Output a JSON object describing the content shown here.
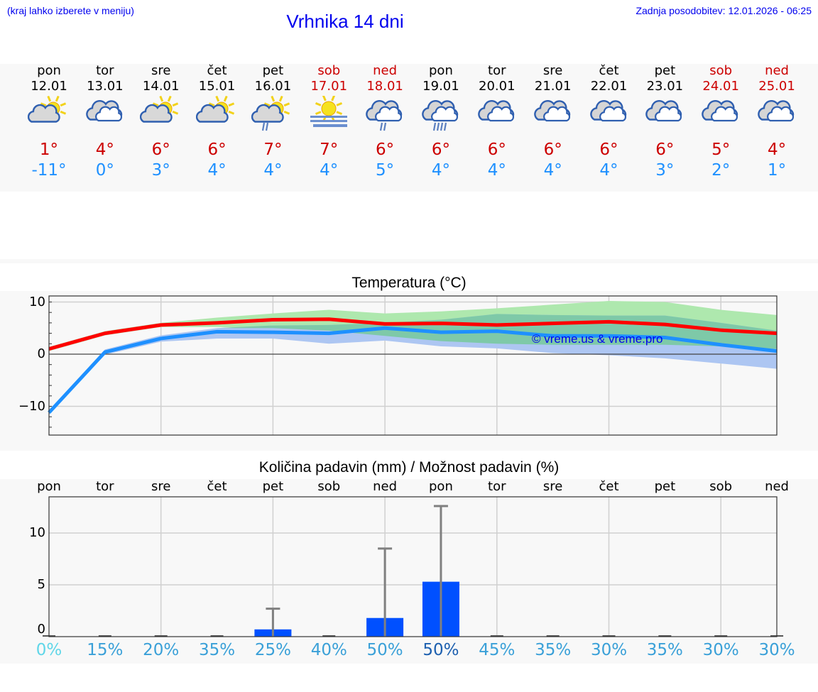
{
  "header": {
    "city_hint": "(kraj lahko izberete v meniju)",
    "title": "Vrhnika 14 dni",
    "updated": "Zadnja posodobitev: 12.01.2026 - 06:25"
  },
  "forecast": {
    "days": [
      {
        "dow": "pon",
        "date": "12.01",
        "weekend": false,
        "icon": "partly-cloudy-icon",
        "max": "1°",
        "min": "-11°"
      },
      {
        "dow": "tor",
        "date": "13.01",
        "weekend": false,
        "icon": "cloudy-icon",
        "max": "4°",
        "min": "0°"
      },
      {
        "dow": "sre",
        "date": "14.01",
        "weekend": false,
        "icon": "partly-cloudy-icon",
        "max": "6°",
        "min": "3°"
      },
      {
        "dow": "čet",
        "date": "15.01",
        "weekend": false,
        "icon": "partly-cloudy-icon",
        "max": "6°",
        "min": "4°"
      },
      {
        "dow": "pet",
        "date": "16.01",
        "weekend": false,
        "icon": "partly-cloudy-light-rain-icon",
        "max": "7°",
        "min": "4°"
      },
      {
        "dow": "sob",
        "date": "17.01",
        "weekend": true,
        "icon": "sun-fog-icon",
        "max": "7°",
        "min": "4°"
      },
      {
        "dow": "ned",
        "date": "18.01",
        "weekend": true,
        "icon": "cloudy-light-rain-icon",
        "max": "6°",
        "min": "5°"
      },
      {
        "dow": "pon",
        "date": "19.01",
        "weekend": false,
        "icon": "cloudy-rain-icon",
        "max": "6°",
        "min": "4°"
      },
      {
        "dow": "tor",
        "date": "20.01",
        "weekend": false,
        "icon": "cloudy-icon",
        "max": "6°",
        "min": "4°"
      },
      {
        "dow": "sre",
        "date": "21.01",
        "weekend": false,
        "icon": "cloudy-icon",
        "max": "6°",
        "min": "4°"
      },
      {
        "dow": "čet",
        "date": "22.01",
        "weekend": false,
        "icon": "cloudy-icon",
        "max": "6°",
        "min": "4°"
      },
      {
        "dow": "pet",
        "date": "23.01",
        "weekend": false,
        "icon": "cloudy-icon",
        "max": "6°",
        "min": "3°"
      },
      {
        "dow": "sob",
        "date": "24.01",
        "weekend": true,
        "icon": "cloudy-icon",
        "max": "5°",
        "min": "2°"
      },
      {
        "dow": "ned",
        "date": "25.01",
        "weekend": true,
        "icon": "cloudy-icon",
        "max": "4°",
        "min": "1°"
      }
    ]
  },
  "colors": {
    "link_blue": "#0000ee",
    "max_temp": "#cc0000",
    "min_temp": "#1e90ff",
    "max_line": "#ff0000",
    "min_line": "#1e90ff",
    "max_band": "#aee8ae",
    "min_band": "#adc6f2",
    "overlap_band": "#7ec9a8",
    "precip_bar": "#0050ff",
    "error_bar": "#808080",
    "pct_text": "#3aa0d8"
  },
  "chart_data": [
    {
      "type": "line",
      "title": "Temperatura (°C)",
      "xlabel": "",
      "ylabel": "",
      "ylim": [
        -15.5,
        11.2
      ],
      "yticks": [
        "10",
        "0",
        "−10"
      ],
      "grid": true,
      "watermark": "© vreme.us & vreme.pro",
      "x": [
        "12.01",
        "13.01",
        "14.01",
        "15.01",
        "16.01",
        "17.01",
        "18.01",
        "19.01",
        "20.01",
        "21.01",
        "22.01",
        "23.01",
        "24.01",
        "25.01"
      ],
      "series": [
        {
          "name": "max",
          "color": "#ff0000",
          "values": [
            1.0,
            4.0,
            5.6,
            6.0,
            6.6,
            6.7,
            5.8,
            5.9,
            5.6,
            5.9,
            6.2,
            5.7,
            4.6,
            4.0
          ]
        },
        {
          "name": "min",
          "color": "#1e90ff",
          "values": [
            -11.2,
            0.4,
            3.0,
            4.3,
            4.2,
            4.0,
            5.0,
            4.2,
            4.4,
            3.5,
            3.5,
            3.2,
            1.8,
            0.6
          ]
        },
        {
          "name": "max_band_high",
          "values": [
            1.4,
            4.4,
            6.0,
            7.0,
            7.8,
            8.5,
            7.8,
            8.2,
            8.8,
            9.5,
            10.2,
            10.0,
            8.5,
            7.5
          ]
        },
        {
          "name": "max_band_low",
          "values": [
            0.6,
            3.6,
            5.2,
            5.2,
            5.0,
            4.5,
            3.5,
            2.5,
            2.0,
            1.8,
            1.8,
            1.8,
            1.5,
            1.0
          ]
        },
        {
          "name": "min_band_high",
          "values": [
            -10.8,
            0.9,
            3.6,
            5.0,
            5.5,
            5.6,
            6.0,
            6.6,
            7.7,
            7.5,
            7.4,
            7.4,
            6.0,
            4.5
          ]
        },
        {
          "name": "min_band_low",
          "values": [
            -11.6,
            -0.1,
            2.4,
            3.0,
            3.0,
            2.0,
            2.6,
            1.5,
            1.1,
            0.2,
            -0.2,
            -0.8,
            -1.8,
            -2.8
          ]
        }
      ]
    },
    {
      "type": "bar",
      "title": "Količina padavin (mm) / Možnost padavin (%)",
      "xlabel": "",
      "ylabel": "",
      "ylim": [
        0,
        13.5
      ],
      "yticks": [
        "10",
        "5",
        "0"
      ],
      "grid": true,
      "categories": [
        "pon",
        "tor",
        "sre",
        "čet",
        "pet",
        "sob",
        "ned",
        "pon",
        "tor",
        "sre",
        "čet",
        "pet",
        "sob",
        "ned"
      ],
      "series": [
        {
          "name": "Količina padavin (mm)",
          "values": [
            0,
            0,
            0,
            0,
            0.7,
            0,
            1.8,
            5.3,
            0,
            0,
            0,
            0,
            0,
            0
          ]
        },
        {
          "name": "Maks. padavin (mm)",
          "values": [
            0,
            0,
            0,
            0,
            2.7,
            0,
            8.5,
            12.6,
            0,
            0,
            0,
            0,
            0,
            0
          ]
        },
        {
          "name": "Možnost padavin (%)",
          "values": [
            0,
            15,
            20,
            35,
            25,
            40,
            50,
            50,
            45,
            35,
            30,
            35,
            30,
            30
          ]
        }
      ],
      "pct_labels": [
        "0%",
        "15%",
        "20%",
        "35%",
        "25%",
        "40%",
        "50%",
        "50%",
        "45%",
        "35%",
        "30%",
        "35%",
        "30%",
        "30%"
      ]
    }
  ]
}
